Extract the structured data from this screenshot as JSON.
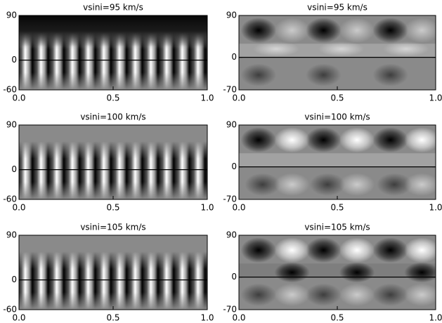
{
  "chart_data": [
    {
      "type": "image",
      "title": "vsini=95 km/s",
      "xlim": [
        0,
        1
      ],
      "xticks": [
        {
          "value": 0,
          "label": "0.0"
        },
        0.5,
        {
          "value": 1,
          "label": "1.0"
        }
      ],
      "ylim": [
        -60,
        90
      ],
      "yticks": [
        -60,
        0,
        90
      ]
    },
    {
      "type": "image",
      "title": "vsini=95 km/s",
      "xlim": [
        0,
        1
      ],
      "xticks": [
        {
          "value": 0,
          "label": "0.0"
        },
        0.5,
        {
          "value": 1,
          "label": "1.0"
        }
      ],
      "ylim": [
        -70,
        90
      ],
      "yticks": [
        -70,
        0,
        90
      ]
    },
    {
      "type": "image",
      "title": "vsini=100 km/s",
      "xlim": [
        0,
        1
      ],
      "xticks": [
        {
          "value": 0,
          "label": "0.0"
        },
        0.5,
        {
          "value": 1,
          "label": "1.0"
        }
      ],
      "ylim": [
        -60,
        90
      ],
      "yticks": [
        -60,
        0,
        90
      ]
    },
    {
      "type": "image",
      "title": "vsini=100 km/s",
      "xlim": [
        0,
        1
      ],
      "xticks": [
        {
          "value": 0,
          "label": "0.0"
        },
        0.5,
        {
          "value": 1,
          "label": "1.0"
        }
      ],
      "ylim": [
        -70,
        90
      ],
      "yticks": [
        -70,
        0,
        90
      ]
    },
    {
      "type": "image",
      "title": "vsini=105 km/s",
      "xlim": [
        0,
        1
      ],
      "xticks": [
        {
          "value": 0,
          "label": "0.0"
        },
        0.5,
        {
          "value": 1,
          "label": "1.0"
        }
      ],
      "ylim": [
        -60,
        90
      ],
      "yticks": [
        -60,
        0,
        90
      ]
    },
    {
      "type": "image",
      "title": "vsini=105 km/s",
      "xlim": [
        0,
        1
      ],
      "xticks": [
        {
          "value": 0,
          "label": "0.0"
        },
        0.5,
        {
          "value": 1,
          "label": "1.0"
        }
      ],
      "ylim": [
        -70,
        90
      ],
      "yticks": [
        -70,
        0,
        90
      ]
    }
  ]
}
